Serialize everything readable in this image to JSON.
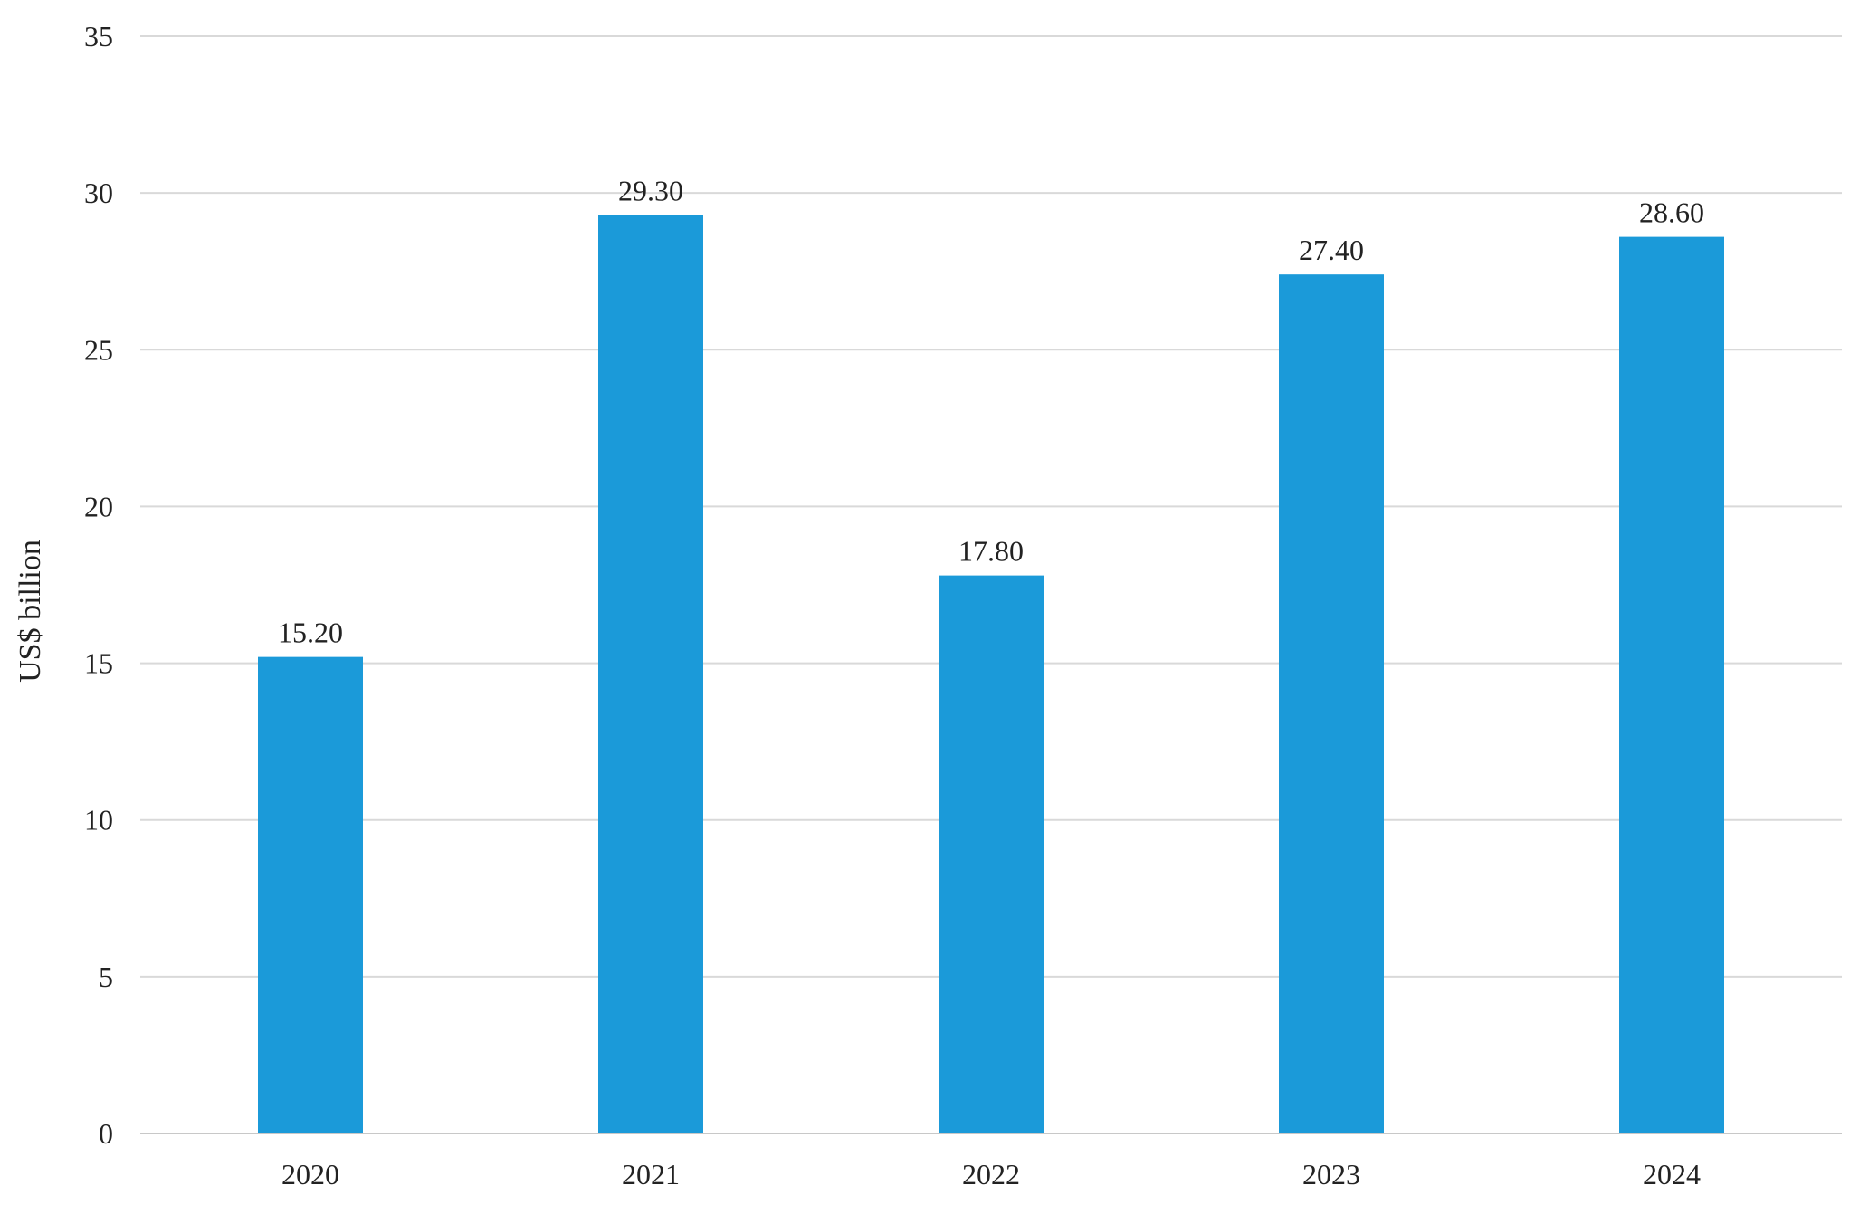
{
  "chart_data": {
    "type": "bar",
    "categories": [
      "2020",
      "2021",
      "2022",
      "2023",
      "2024"
    ],
    "values": [
      15.2,
      29.3,
      17.8,
      27.4,
      28.6
    ],
    "data_labels": [
      "15.20",
      "29.30",
      "17.80",
      "27.40",
      "28.60"
    ],
    "title": "",
    "xlabel": "",
    "ylabel": "US$ billion",
    "ylim": [
      0,
      35
    ],
    "yticks": [
      0,
      5,
      10,
      15,
      20,
      25,
      30,
      35
    ],
    "grid": true,
    "legend": "none",
    "bar_color": "#1b9ad9"
  }
}
